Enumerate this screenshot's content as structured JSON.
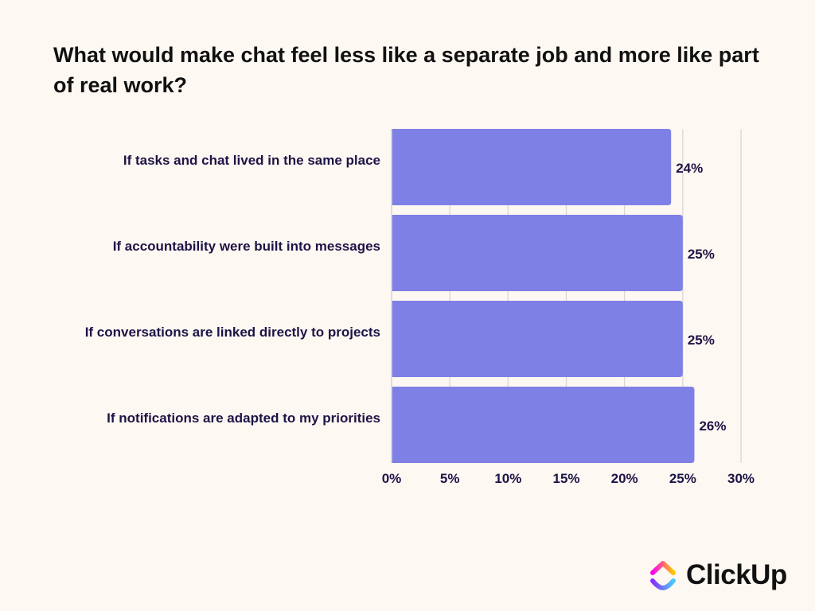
{
  "chart_data": {
    "type": "bar",
    "orientation": "horizontal",
    "title": "What would make chat feel less like a separate job and more like part of real work?",
    "categories": [
      "If tasks and chat lived in the same place",
      "If accountability were built into messages",
      "If conversations are linked directly to projects",
      "If notifications are adapted to my priorities"
    ],
    "values": [
      24,
      25,
      25,
      26
    ],
    "value_labels": [
      "24%",
      "25%",
      "25%",
      "26%"
    ],
    "xlim": [
      0,
      30
    ],
    "xticks": [
      0,
      5,
      10,
      15,
      20,
      25,
      30
    ],
    "xtick_labels": [
      "0%",
      "5%",
      "10%",
      "15%",
      "20%",
      "25%",
      "30%"
    ],
    "xlabel": "",
    "ylabel": "",
    "grid": true,
    "legend": "none"
  },
  "colors": {
    "bar": "#7f80e6",
    "grid": "#d8d4d2",
    "text": "#1e1446",
    "background": "#fdf8f2"
  },
  "brand": {
    "name": "ClickUp",
    "icon": "clickup-logo-icon"
  }
}
